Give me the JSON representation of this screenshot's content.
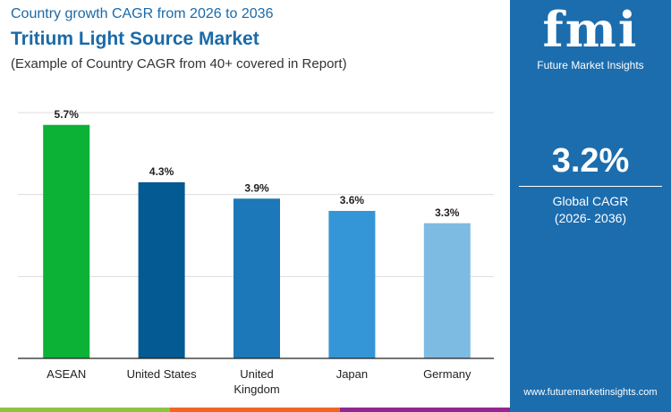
{
  "header": {
    "subtitle_top": "Country growth CAGR from 2026 to 2036",
    "title": "Tritium Light Source Market",
    "note": "(Example of Country CAGR from 40+ covered in Report)"
  },
  "panel": {
    "logo_text": "fmi",
    "logo_sub": "Future Market Insights",
    "cagr_value": "3.2%",
    "cagr_label": "Global CAGR",
    "cagr_period": "(2026- 2036)",
    "url": "www.futuremarketinsights.com"
  },
  "chart_data": {
    "type": "bar",
    "categories": [
      "ASEAN",
      "United States",
      "United Kingdom",
      "Japan",
      "Germany"
    ],
    "category_lines": [
      [
        "ASEAN"
      ],
      [
        "United States"
      ],
      [
        "United",
        "Kingdom"
      ],
      [
        "Japan"
      ],
      [
        "Germany"
      ]
    ],
    "values": [
      5.7,
      4.3,
      3.9,
      3.6,
      3.3
    ],
    "labels": [
      "5.7%",
      "4.3%",
      "3.9%",
      "3.6%",
      "3.3%"
    ],
    "colors": [
      "#0bb236",
      "#045a92",
      "#1c78b8",
      "#3496d6",
      "#7ebbe2"
    ],
    "ylim": [
      0,
      6
    ],
    "gridlines": [
      2,
      4,
      6
    ],
    "grid": true
  },
  "colors": {
    "panel": "#1c6dae",
    "footer": [
      "#8cc63f",
      "#f26522",
      "#92278f"
    ]
  }
}
